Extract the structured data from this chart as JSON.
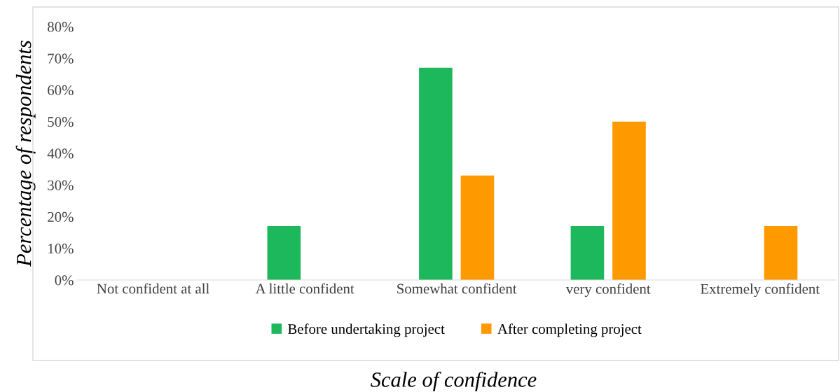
{
  "chart_data": {
    "type": "bar",
    "xlabel": "Scale of confidence",
    "ylabel": "Percentage of respondents",
    "categories": [
      "Not confident at all",
      "A little confident",
      "Somewhat confident",
      "very confident",
      "Extremely confident"
    ],
    "series": [
      {
        "name": "Before undertaking project",
        "color": "#1db85c",
        "values": [
          0,
          17,
          67,
          17,
          0
        ]
      },
      {
        "name": "After completing project",
        "color": "#ff9900",
        "values": [
          0,
          0,
          33,
          50,
          17
        ]
      }
    ],
    "ylim": [
      0,
      80
    ],
    "yticks": [
      {
        "value": 0,
        "label": "0%"
      },
      {
        "value": 10,
        "label": "10%"
      },
      {
        "value": 20,
        "label": "20%"
      },
      {
        "value": 30,
        "label": "30%"
      },
      {
        "value": 40,
        "label": "40%"
      },
      {
        "value": 50,
        "label": "50%"
      },
      {
        "value": 60,
        "label": "60%"
      },
      {
        "value": 70,
        "label": "70%"
      },
      {
        "value": 80,
        "label": "80%"
      }
    ],
    "grid": false,
    "legend": "bottom"
  }
}
